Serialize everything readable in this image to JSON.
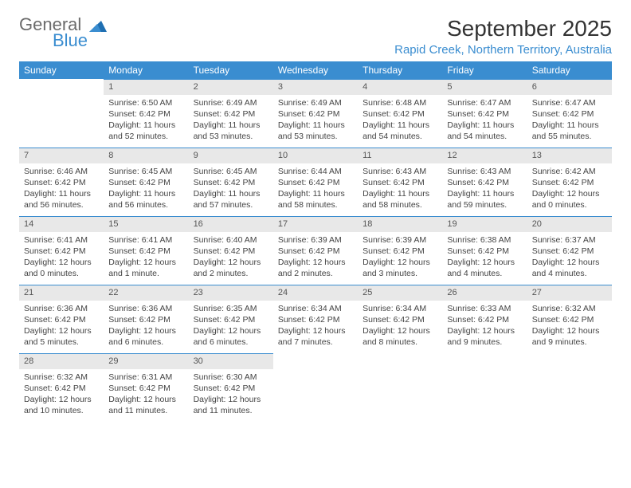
{
  "logo": {
    "general": "General",
    "blue": "Blue"
  },
  "title": "September 2025",
  "location": "Rapid Creek, Northern Territory, Australia",
  "colors": {
    "header_bg": "#3a8dd0",
    "header_text": "#ffffff",
    "daynum_bg": "#e8e8e8",
    "daynum_text": "#555555",
    "body_text": "#444444",
    "logo_gray": "#6b6b6b",
    "logo_blue": "#3a8dd0",
    "page_bg": "#ffffff"
  },
  "weekdays": [
    "Sunday",
    "Monday",
    "Tuesday",
    "Wednesday",
    "Thursday",
    "Friday",
    "Saturday"
  ],
  "weeks": [
    [
      null,
      {
        "n": "1",
        "sr": "Sunrise: 6:50 AM",
        "ss": "Sunset: 6:42 PM",
        "dl1": "Daylight: 11 hours",
        "dl2": "and 52 minutes."
      },
      {
        "n": "2",
        "sr": "Sunrise: 6:49 AM",
        "ss": "Sunset: 6:42 PM",
        "dl1": "Daylight: 11 hours",
        "dl2": "and 53 minutes."
      },
      {
        "n": "3",
        "sr": "Sunrise: 6:49 AM",
        "ss": "Sunset: 6:42 PM",
        "dl1": "Daylight: 11 hours",
        "dl2": "and 53 minutes."
      },
      {
        "n": "4",
        "sr": "Sunrise: 6:48 AM",
        "ss": "Sunset: 6:42 PM",
        "dl1": "Daylight: 11 hours",
        "dl2": "and 54 minutes."
      },
      {
        "n": "5",
        "sr": "Sunrise: 6:47 AM",
        "ss": "Sunset: 6:42 PM",
        "dl1": "Daylight: 11 hours",
        "dl2": "and 54 minutes."
      },
      {
        "n": "6",
        "sr": "Sunrise: 6:47 AM",
        "ss": "Sunset: 6:42 PM",
        "dl1": "Daylight: 11 hours",
        "dl2": "and 55 minutes."
      }
    ],
    [
      {
        "n": "7",
        "sr": "Sunrise: 6:46 AM",
        "ss": "Sunset: 6:42 PM",
        "dl1": "Daylight: 11 hours",
        "dl2": "and 56 minutes."
      },
      {
        "n": "8",
        "sr": "Sunrise: 6:45 AM",
        "ss": "Sunset: 6:42 PM",
        "dl1": "Daylight: 11 hours",
        "dl2": "and 56 minutes."
      },
      {
        "n": "9",
        "sr": "Sunrise: 6:45 AM",
        "ss": "Sunset: 6:42 PM",
        "dl1": "Daylight: 11 hours",
        "dl2": "and 57 minutes."
      },
      {
        "n": "10",
        "sr": "Sunrise: 6:44 AM",
        "ss": "Sunset: 6:42 PM",
        "dl1": "Daylight: 11 hours",
        "dl2": "and 58 minutes."
      },
      {
        "n": "11",
        "sr": "Sunrise: 6:43 AM",
        "ss": "Sunset: 6:42 PM",
        "dl1": "Daylight: 11 hours",
        "dl2": "and 58 minutes."
      },
      {
        "n": "12",
        "sr": "Sunrise: 6:43 AM",
        "ss": "Sunset: 6:42 PM",
        "dl1": "Daylight: 11 hours",
        "dl2": "and 59 minutes."
      },
      {
        "n": "13",
        "sr": "Sunrise: 6:42 AM",
        "ss": "Sunset: 6:42 PM",
        "dl1": "Daylight: 12 hours",
        "dl2": "and 0 minutes."
      }
    ],
    [
      {
        "n": "14",
        "sr": "Sunrise: 6:41 AM",
        "ss": "Sunset: 6:42 PM",
        "dl1": "Daylight: 12 hours",
        "dl2": "and 0 minutes."
      },
      {
        "n": "15",
        "sr": "Sunrise: 6:41 AM",
        "ss": "Sunset: 6:42 PM",
        "dl1": "Daylight: 12 hours",
        "dl2": "and 1 minute."
      },
      {
        "n": "16",
        "sr": "Sunrise: 6:40 AM",
        "ss": "Sunset: 6:42 PM",
        "dl1": "Daylight: 12 hours",
        "dl2": "and 2 minutes."
      },
      {
        "n": "17",
        "sr": "Sunrise: 6:39 AM",
        "ss": "Sunset: 6:42 PM",
        "dl1": "Daylight: 12 hours",
        "dl2": "and 2 minutes."
      },
      {
        "n": "18",
        "sr": "Sunrise: 6:39 AM",
        "ss": "Sunset: 6:42 PM",
        "dl1": "Daylight: 12 hours",
        "dl2": "and 3 minutes."
      },
      {
        "n": "19",
        "sr": "Sunrise: 6:38 AM",
        "ss": "Sunset: 6:42 PM",
        "dl1": "Daylight: 12 hours",
        "dl2": "and 4 minutes."
      },
      {
        "n": "20",
        "sr": "Sunrise: 6:37 AM",
        "ss": "Sunset: 6:42 PM",
        "dl1": "Daylight: 12 hours",
        "dl2": "and 4 minutes."
      }
    ],
    [
      {
        "n": "21",
        "sr": "Sunrise: 6:36 AM",
        "ss": "Sunset: 6:42 PM",
        "dl1": "Daylight: 12 hours",
        "dl2": "and 5 minutes."
      },
      {
        "n": "22",
        "sr": "Sunrise: 6:36 AM",
        "ss": "Sunset: 6:42 PM",
        "dl1": "Daylight: 12 hours",
        "dl2": "and 6 minutes."
      },
      {
        "n": "23",
        "sr": "Sunrise: 6:35 AM",
        "ss": "Sunset: 6:42 PM",
        "dl1": "Daylight: 12 hours",
        "dl2": "and 6 minutes."
      },
      {
        "n": "24",
        "sr": "Sunrise: 6:34 AM",
        "ss": "Sunset: 6:42 PM",
        "dl1": "Daylight: 12 hours",
        "dl2": "and 7 minutes."
      },
      {
        "n": "25",
        "sr": "Sunrise: 6:34 AM",
        "ss": "Sunset: 6:42 PM",
        "dl1": "Daylight: 12 hours",
        "dl2": "and 8 minutes."
      },
      {
        "n": "26",
        "sr": "Sunrise: 6:33 AM",
        "ss": "Sunset: 6:42 PM",
        "dl1": "Daylight: 12 hours",
        "dl2": "and 9 minutes."
      },
      {
        "n": "27",
        "sr": "Sunrise: 6:32 AM",
        "ss": "Sunset: 6:42 PM",
        "dl1": "Daylight: 12 hours",
        "dl2": "and 9 minutes."
      }
    ],
    [
      {
        "n": "28",
        "sr": "Sunrise: 6:32 AM",
        "ss": "Sunset: 6:42 PM",
        "dl1": "Daylight: 12 hours",
        "dl2": "and 10 minutes."
      },
      {
        "n": "29",
        "sr": "Sunrise: 6:31 AM",
        "ss": "Sunset: 6:42 PM",
        "dl1": "Daylight: 12 hours",
        "dl2": "and 11 minutes."
      },
      {
        "n": "30",
        "sr": "Sunrise: 6:30 AM",
        "ss": "Sunset: 6:42 PM",
        "dl1": "Daylight: 12 hours",
        "dl2": "and 11 minutes."
      },
      null,
      null,
      null,
      null
    ]
  ]
}
